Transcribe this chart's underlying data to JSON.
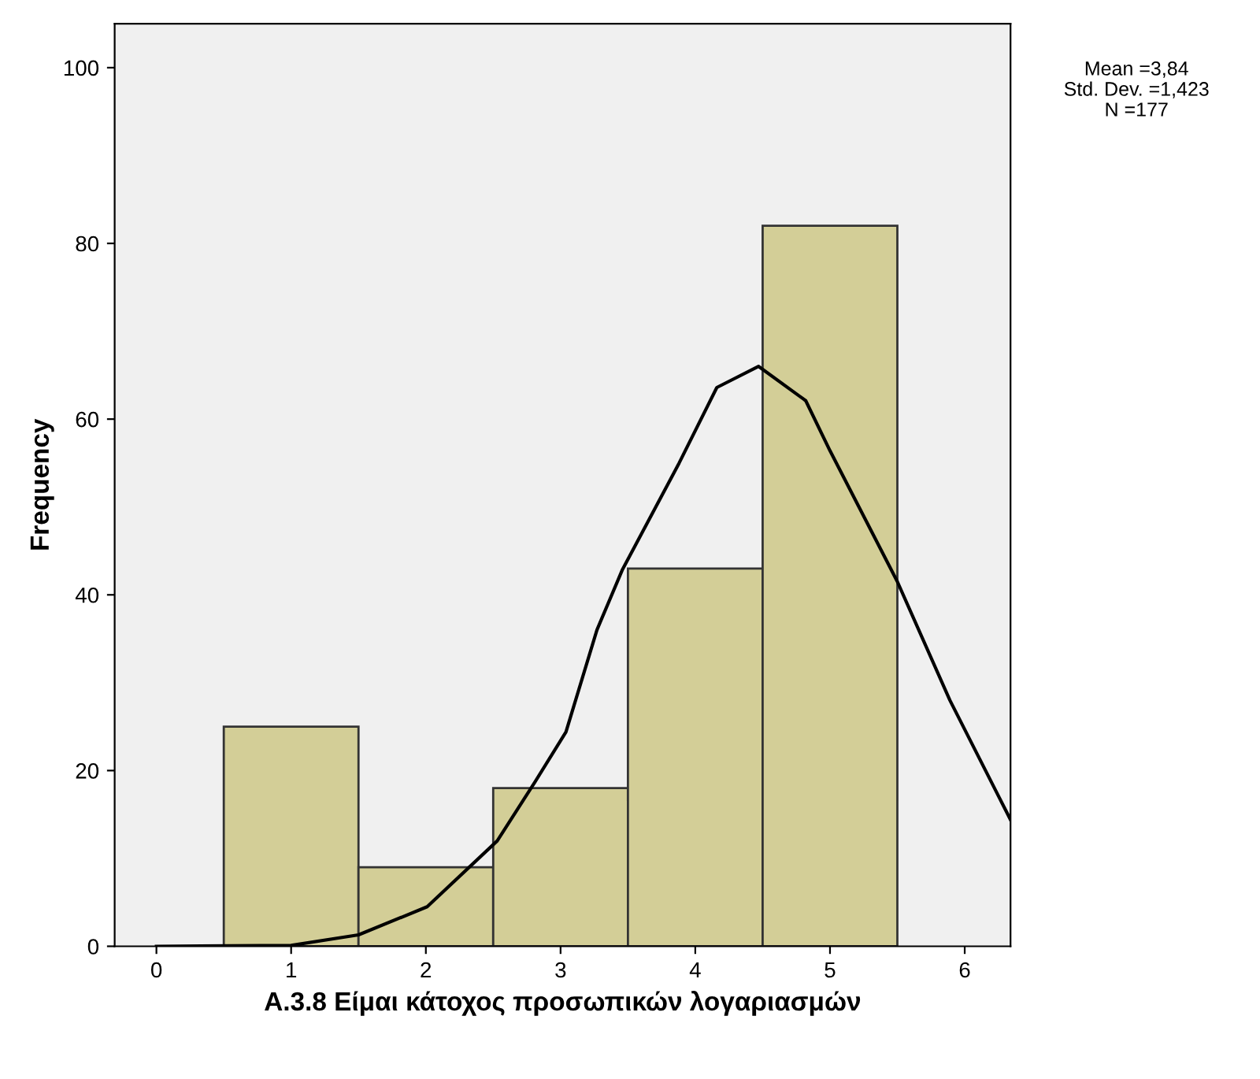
{
  "chart_data": {
    "type": "histogram",
    "xlabel": "A.3.8 Είμαι κάτοχος προσωπικών λογαριασμών",
    "ylabel": "Frequency",
    "bins": [
      0.5,
      1.5,
      2.5,
      3.5,
      4.5,
      5.5
    ],
    "values": [
      25,
      9,
      18,
      43,
      82
    ],
    "color": "#d3ce97",
    "series": [
      {
        "type": "line",
        "color": "#000000",
        "x": [
          0,
          1.0,
          1.5,
          2.01,
          2.53,
          2.81,
          3.04,
          3.27,
          3.46,
          3.88,
          4.16,
          4.47,
          4.82,
          5.0,
          5.5,
          5.89,
          6.34
        ],
        "values": [
          0,
          0.1,
          1.3,
          4.5,
          12,
          18.7,
          24.4,
          36,
          42.9,
          55,
          63.6,
          66,
          62.1,
          56.4,
          41.5,
          28,
          14.4
        ]
      }
    ],
    "xlim": [
      -0.31,
      6.34
    ],
    "ylim": [
      0,
      105
    ],
    "xticks": [
      0,
      1,
      2,
      3,
      4,
      5,
      6
    ],
    "yticks": [
      0,
      20,
      40,
      60,
      80,
      100
    ],
    "grid": false,
    "legend": false,
    "annotations": [
      "Mean =3,84",
      "Std. Dev. =1,423",
      "N =177"
    ]
  }
}
